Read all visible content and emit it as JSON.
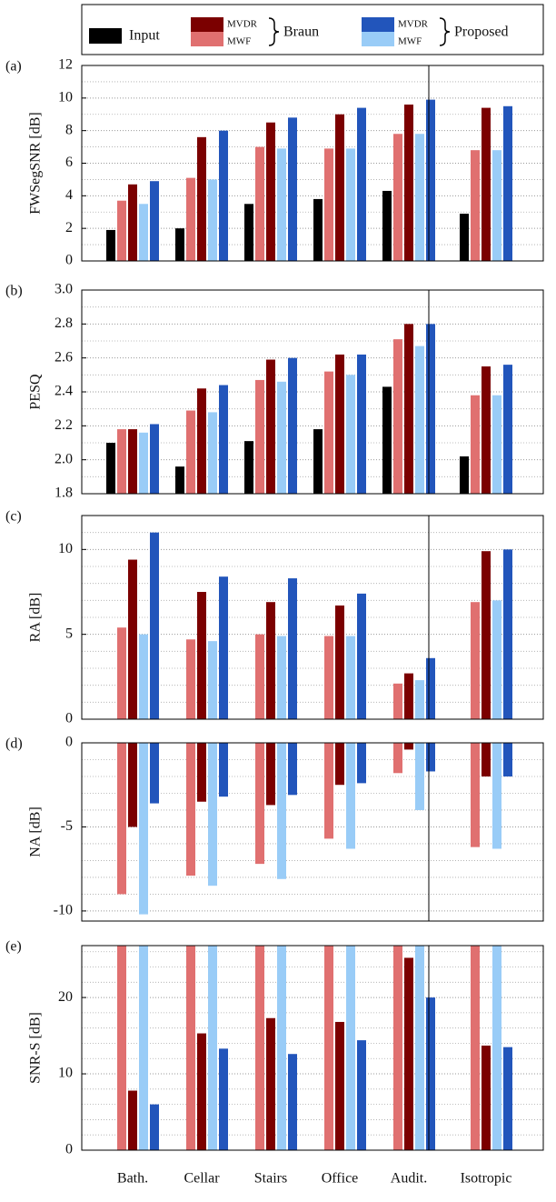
{
  "legend": {
    "entries": [
      {
        "name": "Input",
        "color": "#000000"
      }
    ],
    "groups": [
      {
        "label": "Braun",
        "entries": [
          {
            "name": "MVDR",
            "color": "#7b0000"
          },
          {
            "name": "MWF",
            "color": "#e07070"
          }
        ]
      },
      {
        "label": "Proposed",
        "entries": [
          {
            "name": "MVDR",
            "color": "#2255bb"
          },
          {
            "name": "MWF",
            "color": "#99ccf7"
          }
        ]
      }
    ]
  },
  "chart_data": [
    {
      "type": "bar",
      "panel": "(a)",
      "ylabel": "FWSegSNR [dB]",
      "ylim": [
        0,
        12
      ],
      "yticks": [
        0,
        2,
        4,
        6,
        8,
        10,
        12
      ],
      "minor_yticks": [
        1,
        3,
        5,
        7,
        9,
        11
      ],
      "grid": true,
      "series": [
        {
          "color": "#000000",
          "values": [
            1.9,
            2.0,
            3.5,
            3.8,
            4.3,
            2.9
          ]
        },
        {
          "color": "#e07070",
          "values": [
            3.7,
            5.1,
            7.0,
            6.9,
            7.8,
            6.8
          ]
        },
        {
          "color": "#7b0000",
          "values": [
            4.7,
            7.6,
            8.5,
            9.0,
            9.6,
            9.4
          ]
        },
        {
          "color": "#99ccf7",
          "values": [
            3.5,
            5.0,
            6.9,
            6.9,
            7.8,
            6.8
          ]
        },
        {
          "color": "#2255bb",
          "values": [
            4.9,
            8.0,
            8.8,
            9.4,
            9.9,
            9.5
          ]
        }
      ]
    },
    {
      "type": "bar",
      "panel": "(b)",
      "ylabel": "PESQ",
      "ylim": [
        1.8,
        3.0
      ],
      "yticks": [
        1.8,
        {
          "value": 2.0,
          "label": "2.0"
        },
        2.2,
        2.4,
        2.6,
        2.8,
        {
          "value": 3.0,
          "label": "3.0"
        }
      ],
      "minor_yticks": [
        1.9,
        2.1,
        2.3,
        2.5,
        2.7,
        2.9
      ],
      "grid": true,
      "series": [
        {
          "color": "#000000",
          "values": [
            2.1,
            1.96,
            2.11,
            2.18,
            2.43,
            2.02
          ]
        },
        {
          "color": "#e07070",
          "values": [
            2.18,
            2.29,
            2.47,
            2.52,
            2.71,
            2.38
          ]
        },
        {
          "color": "#7b0000",
          "values": [
            2.18,
            2.42,
            2.59,
            2.62,
            2.8,
            2.55
          ]
        },
        {
          "color": "#99ccf7",
          "values": [
            2.16,
            2.28,
            2.46,
            2.5,
            2.67,
            2.38
          ]
        },
        {
          "color": "#2255bb",
          "values": [
            2.21,
            2.44,
            2.6,
            2.62,
            2.8,
            2.56
          ]
        }
      ]
    },
    {
      "type": "bar",
      "panel": "(c)",
      "ylabel": "RA [dB]",
      "ylim": [
        0,
        12
      ],
      "yticks": [
        0,
        5,
        10
      ],
      "minor_yticks": [
        1,
        2,
        3,
        4,
        6,
        7,
        8,
        9,
        11
      ],
      "grid": true,
      "series": [
        {
          "color": "#000000",
          "values": [
            null,
            null,
            null,
            null,
            null,
            null
          ]
        },
        {
          "color": "#e07070",
          "values": [
            5.4,
            4.7,
            5.0,
            4.9,
            2.1,
            6.9
          ]
        },
        {
          "color": "#7b0000",
          "values": [
            9.4,
            7.5,
            6.9,
            6.7,
            2.7,
            9.9
          ]
        },
        {
          "color": "#99ccf7",
          "values": [
            5.0,
            4.6,
            4.9,
            4.9,
            2.3,
            7.0
          ]
        },
        {
          "color": "#2255bb",
          "values": [
            11.0,
            8.4,
            8.3,
            7.4,
            3.6,
            10.0
          ]
        }
      ]
    },
    {
      "type": "bar",
      "panel": "(d)",
      "ylabel": "NA [dB]",
      "ylim": [
        -10.6,
        0
      ],
      "yticks": [
        -10,
        -5,
        0
      ],
      "minor_yticks": [
        -9,
        -8,
        -7,
        -6,
        -4,
        -3,
        -2,
        -1
      ],
      "grid": true,
      "series": [
        {
          "color": "#000000",
          "values": [
            null,
            null,
            null,
            null,
            null,
            null
          ]
        },
        {
          "color": "#e07070",
          "values": [
            -9.0,
            -7.9,
            -7.2,
            -5.7,
            -1.8,
            -6.2
          ]
        },
        {
          "color": "#7b0000",
          "values": [
            -5.0,
            -3.5,
            -3.7,
            -2.5,
            -0.4,
            -2.0
          ]
        },
        {
          "color": "#99ccf7",
          "values": [
            -10.2,
            -8.5,
            -8.1,
            -6.3,
            -4.0,
            -6.3
          ]
        },
        {
          "color": "#2255bb",
          "values": [
            -3.6,
            -3.2,
            -3.1,
            -2.4,
            -1.7,
            -2.0
          ]
        }
      ]
    },
    {
      "type": "bar",
      "panel": "(e)",
      "ylabel": "SNR-S [dB]",
      "ylim": [
        0,
        26.8
      ],
      "yticks": [
        0,
        10,
        20
      ],
      "minor_yticks": [
        2,
        4,
        6,
        8,
        12,
        14,
        16,
        18,
        22,
        24,
        26
      ],
      "grid": true,
      "categories": [
        "Bath.",
        "Cellar",
        "Stairs",
        "Office",
        "Audit.",
        "Isotropic"
      ],
      "series": [
        {
          "color": "#000000",
          "values": [
            null,
            null,
            null,
            null,
            null,
            null
          ]
        },
        {
          "color": "#e07070",
          "values": [
            26.8,
            26.8,
            26.8,
            26.8,
            26.8,
            26.8
          ]
        },
        {
          "color": "#7b0000",
          "values": [
            7.8,
            15.3,
            17.3,
            16.8,
            25.2,
            13.7
          ]
        },
        {
          "color": "#99ccf7",
          "values": [
            26.8,
            26.8,
            26.8,
            26.8,
            26.8,
            26.8
          ]
        },
        {
          "color": "#2255bb",
          "values": [
            6.0,
            13.3,
            12.6,
            14.4,
            20.0,
            13.5
          ]
        }
      ]
    }
  ]
}
